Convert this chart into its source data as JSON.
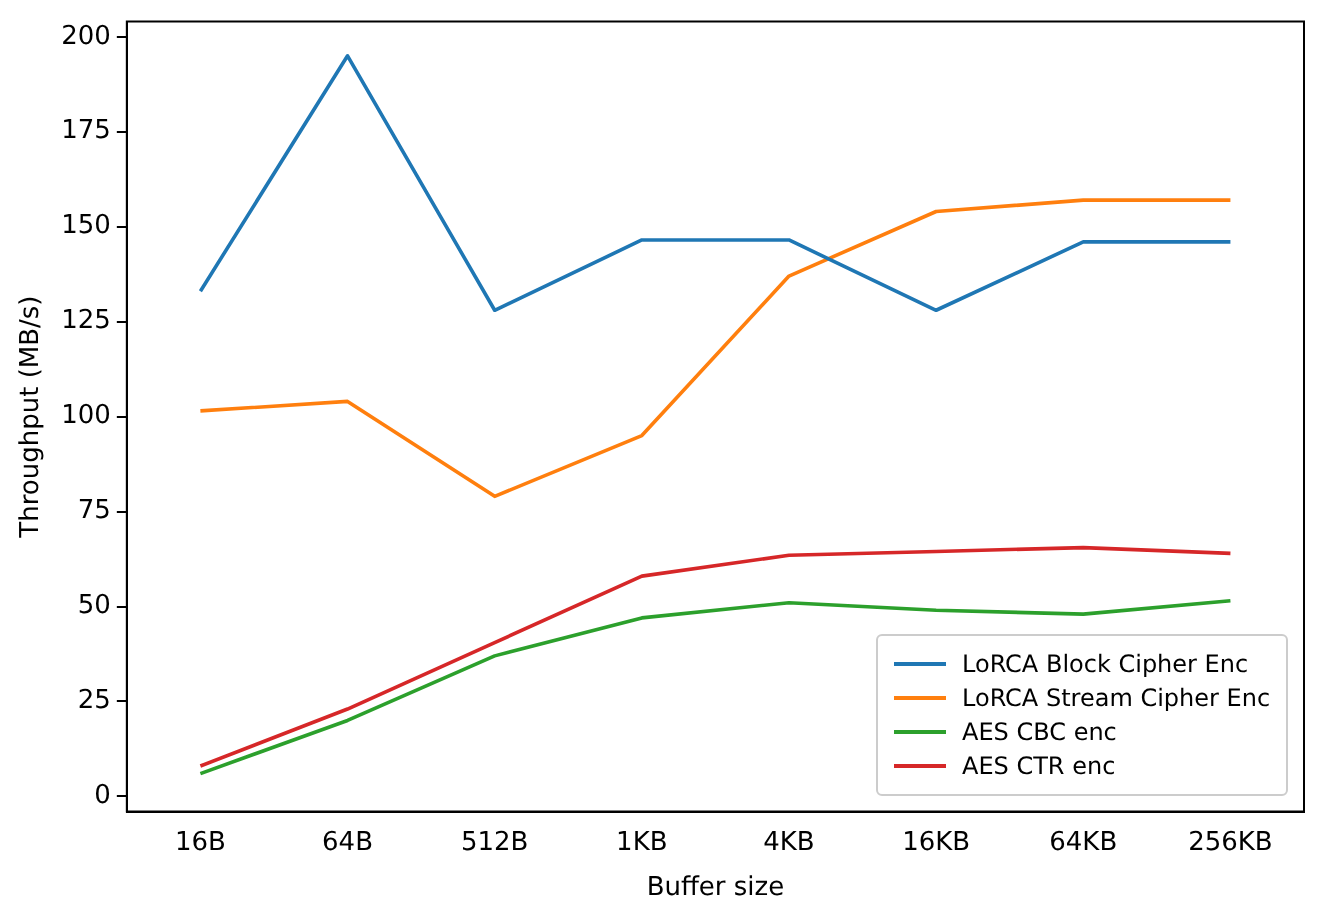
{
  "chart_data": {
    "type": "line",
    "xlabel": "Buffer size",
    "ylabel": "Throughput (MB/s)",
    "categories": [
      "16B",
      "64B",
      "512B",
      "1KB",
      "4KB",
      "16KB",
      "64KB",
      "256KB"
    ],
    "series": [
      {
        "name": "LoRCA Block Cipher Enc",
        "color": "#1f77b4",
        "values": [
          133,
          195,
          128,
          146.5,
          146.5,
          128,
          146,
          146
        ]
      },
      {
        "name": "LoRCA Stream Cipher Enc",
        "color": "#ff7f0e",
        "values": [
          101.5,
          104,
          79,
          95,
          137,
          154,
          157,
          157
        ]
      },
      {
        "name": "AES CBC enc",
        "color": "#2ca02c",
        "values": [
          6,
          20,
          37,
          47,
          51,
          49,
          48,
          51.5
        ]
      },
      {
        "name": "AES CTR enc",
        "color": "#d62728",
        "values": [
          8,
          23,
          40.5,
          58,
          63.5,
          64.5,
          65.5,
          64
        ]
      }
    ],
    "ylim": [
      -4,
      204
    ],
    "yticks": [
      0,
      25,
      50,
      75,
      100,
      125,
      150,
      175,
      200
    ],
    "grid": false,
    "legend": "bottom right",
    "marker": "none",
    "line_style": "solid"
  }
}
